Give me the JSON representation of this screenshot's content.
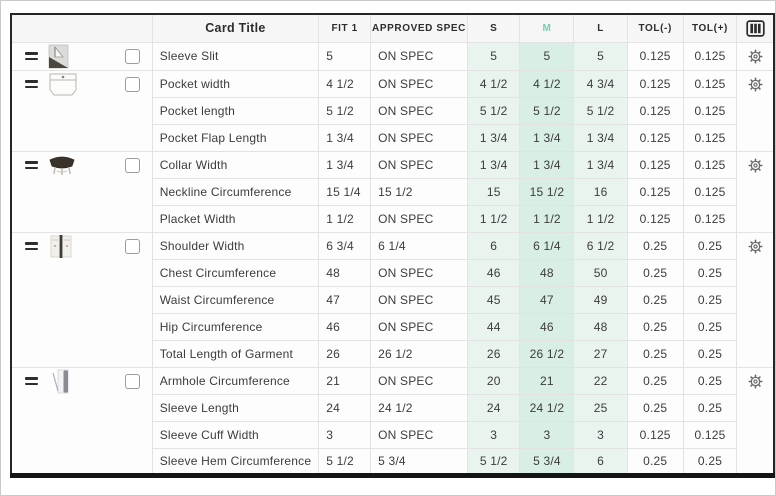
{
  "table": {
    "columns": {
      "select": "",
      "card_title": "Card Title",
      "fit": "FIT 1",
      "approved": "APPROVED SPEC",
      "sizes": [
        "S",
        "M",
        "L"
      ],
      "tol_minus": "TOL(-)",
      "tol_plus": "TOL(+)"
    },
    "highlighted_size": "M",
    "groups": [
      {
        "thumbnail": "sleeve-slit-sketch",
        "checked": false,
        "has_settings": true,
        "rows": [
          {
            "title": "Sleeve Slit",
            "fit": "5",
            "approved": "ON SPEC",
            "s": "5",
            "m": "5",
            "l": "5",
            "tol_minus": "0.125",
            "tol_plus": "0.125"
          }
        ]
      },
      {
        "thumbnail": "pocket-sketch",
        "checked": false,
        "has_settings": true,
        "rows": [
          {
            "title": "Pocket width",
            "fit": "4 1/2",
            "approved": "ON SPEC",
            "s": "4 1/2",
            "m": "4 1/2",
            "l": "4 3/4",
            "tol_minus": "0.125",
            "tol_plus": "0.125"
          },
          {
            "title": "Pocket length",
            "fit": "5 1/2",
            "approved": "ON SPEC",
            "s": "5 1/2",
            "m": "5 1/2",
            "l": "5 1/2",
            "tol_minus": "0.125",
            "tol_plus": "0.125"
          },
          {
            "title": "Pocket Flap Length",
            "fit": "1 3/4",
            "approved": "ON SPEC",
            "s": "1 3/4",
            "m": "1 3/4",
            "l": "1 3/4",
            "tol_minus": "0.125",
            "tol_plus": "0.125"
          }
        ]
      },
      {
        "thumbnail": "collar-sketch",
        "checked": false,
        "has_settings": true,
        "rows": [
          {
            "title": "Collar Width",
            "fit": "1 3/4",
            "approved": "ON SPEC",
            "s": "1 3/4",
            "m": "1 3/4",
            "l": "1 3/4",
            "tol_minus": "0.125",
            "tol_plus": "0.125"
          },
          {
            "title": "Neckline Circumference",
            "fit": "15 1/4",
            "approved": "15 1/2",
            "s": "15",
            "m": "15 1/2",
            "l": "16",
            "tol_minus": "0.125",
            "tol_plus": "0.125"
          },
          {
            "title": "Placket Width",
            "fit": "1 1/2",
            "approved": "ON SPEC",
            "s": "1 1/2",
            "m": "1 1/2",
            "l": "1 1/2",
            "tol_minus": "0.125",
            "tol_plus": "0.125"
          }
        ]
      },
      {
        "thumbnail": "shirt-placket-sketch",
        "checked": false,
        "has_settings": true,
        "rows": [
          {
            "title": "Shoulder Width",
            "fit": "6 3/4",
            "approved": "6 1/4",
            "s": "6",
            "m": "6 1/4",
            "l": "6 1/2",
            "tol_minus": "0.25",
            "tol_plus": "0.25"
          },
          {
            "title": "Chest Circumference",
            "fit": "48",
            "approved": "ON SPEC",
            "s": "46",
            "m": "48",
            "l": "50",
            "tol_minus": "0.25",
            "tol_plus": "0.25"
          },
          {
            "title": "Waist Circumference",
            "fit": "47",
            "approved": "ON SPEC",
            "s": "45",
            "m": "47",
            "l": "49",
            "tol_minus": "0.25",
            "tol_plus": "0.25"
          },
          {
            "title": "Hip Circumference",
            "fit": "46",
            "approved": "ON SPEC",
            "s": "44",
            "m": "46",
            "l": "48",
            "tol_minus": "0.25",
            "tol_plus": "0.25"
          },
          {
            "title": "Total Length of Garment",
            "fit": "26",
            "approved": "26 1/2",
            "s": "26",
            "m": "26 1/2",
            "l": "27",
            "tol_minus": "0.25",
            "tol_plus": "0.25"
          }
        ]
      },
      {
        "thumbnail": "sleeve-sketch",
        "checked": false,
        "has_settings": true,
        "rows": [
          {
            "title": "Armhole Circumference",
            "fit": "21",
            "approved": "ON SPEC",
            "s": "20",
            "m": "21",
            "l": "22",
            "tol_minus": "0.25",
            "tol_plus": "0.25"
          },
          {
            "title": "Sleeve Length",
            "fit": "24",
            "approved": "24 1/2",
            "s": "24",
            "m": "24 1/2",
            "l": "25",
            "tol_minus": "0.25",
            "tol_plus": "0.25"
          },
          {
            "title": "Sleeve Cuff Width",
            "fit": "3",
            "approved": "ON SPEC",
            "s": "3",
            "m": "3",
            "l": "3",
            "tol_minus": "0.125",
            "tol_plus": "0.125"
          },
          {
            "title": "Sleeve Hem Circumference",
            "fit": "5 1/2",
            "approved": "5 3/4",
            "s": "5 1/2",
            "m": "5 3/4",
            "l": "6",
            "tol_minus": "0.25",
            "tol_plus": "0.25"
          }
        ]
      }
    ]
  },
  "icons": {
    "drag": "drag-handle-icon",
    "row_settings": "gear-icon",
    "column_config": "columns-icon"
  },
  "colors": {
    "size_cell_bg": "#e9f4ee",
    "size_m_cell_bg": "#d9eee4",
    "size_m_header_text": "#76cfa8",
    "header_bg": "#f6f6f6",
    "grid_line": "#e3e3e3",
    "outer_border": "#262626",
    "text": "#3c3c3c"
  }
}
